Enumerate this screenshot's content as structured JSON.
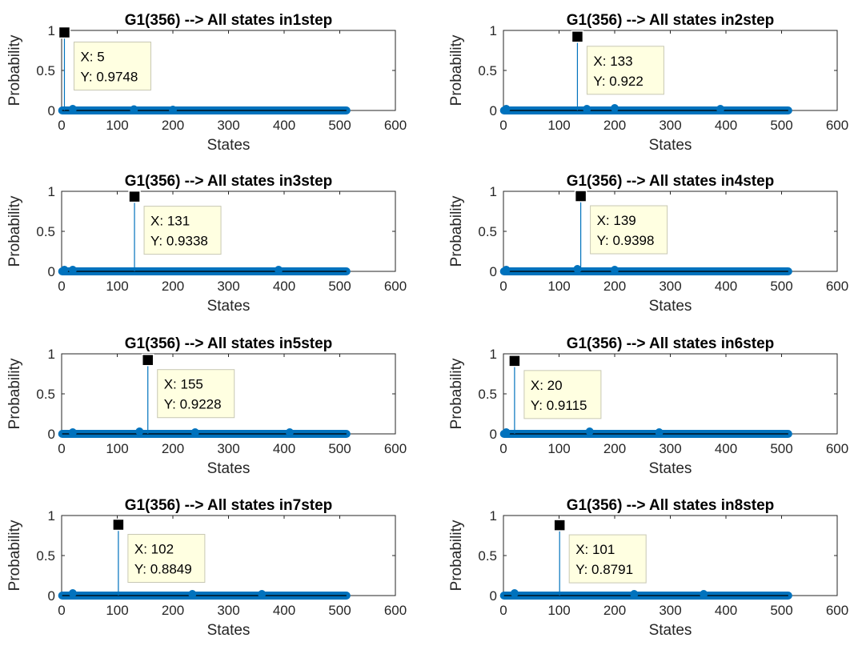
{
  "chart_data": [
    {
      "type": "stem",
      "title": "G1(356) --> All states in1step",
      "xlabel": "States",
      "ylabel": "Probability",
      "xlim": [
        0,
        600
      ],
      "ylim": [
        0,
        1
      ],
      "xticks": [
        "0",
        "100",
        "200",
        "300",
        "400",
        "500",
        "600"
      ],
      "yticks": [
        "0",
        "0.5",
        "1"
      ],
      "n_states": 512,
      "peak": {
        "x": 5,
        "y": 0.9748
      },
      "datatip": {
        "x_label": "X: 5",
        "y_label": "Y: 0.9748"
      },
      "minor_points": [
        {
          "x": 20,
          "y": 0.02
        },
        {
          "x": 130,
          "y": 0.015
        },
        {
          "x": 200,
          "y": 0.01
        }
      ]
    },
    {
      "type": "stem",
      "title": "G1(356) --> All states in2step",
      "xlabel": "States",
      "ylabel": "Probability",
      "xlim": [
        0,
        600
      ],
      "ylim": [
        0,
        1
      ],
      "xticks": [
        "0",
        "100",
        "200",
        "300",
        "400",
        "500",
        "600"
      ],
      "yticks": [
        "0",
        "0.5",
        "1"
      ],
      "n_states": 512,
      "peak": {
        "x": 133,
        "y": 0.922
      },
      "datatip": {
        "x_label": "X: 133",
        "y_label": "Y: 0.922"
      },
      "minor_points": [
        {
          "x": 5,
          "y": 0.02
        },
        {
          "x": 150,
          "y": 0.02
        },
        {
          "x": 200,
          "y": 0.03
        },
        {
          "x": 390,
          "y": 0.02
        }
      ]
    },
    {
      "type": "stem",
      "title": "G1(356) --> All states in3step",
      "xlabel": "States",
      "ylabel": "Probability",
      "xlim": [
        0,
        600
      ],
      "ylim": [
        0,
        1
      ],
      "xticks": [
        "0",
        "100",
        "200",
        "300",
        "400",
        "500",
        "600"
      ],
      "yticks": [
        "0",
        "0.5",
        "1"
      ],
      "n_states": 512,
      "peak": {
        "x": 131,
        "y": 0.9338
      },
      "datatip": {
        "x_label": "X: 131",
        "y_label": "Y: 0.9338"
      },
      "minor_points": [
        {
          "x": 5,
          "y": 0.02
        },
        {
          "x": 20,
          "y": 0.02
        },
        {
          "x": 390,
          "y": 0.02
        }
      ]
    },
    {
      "type": "stem",
      "title": "G1(356) --> All states in4step",
      "xlabel": "States",
      "ylabel": "Probability",
      "xlim": [
        0,
        600
      ],
      "ylim": [
        0,
        1
      ],
      "xticks": [
        "0",
        "100",
        "200",
        "300",
        "400",
        "500",
        "600"
      ],
      "yticks": [
        "0",
        "0.5",
        "1"
      ],
      "n_states": 512,
      "peak": {
        "x": 139,
        "y": 0.9398
      },
      "datatip": {
        "x_label": "X: 139",
        "y_label": "Y: 0.9398"
      },
      "minor_points": [
        {
          "x": 5,
          "y": 0.02
        },
        {
          "x": 133,
          "y": 0.03
        },
        {
          "x": 200,
          "y": 0.02
        }
      ]
    },
    {
      "type": "stem",
      "title": "G1(356) --> All states in5step",
      "xlabel": "States",
      "ylabel": "Probability",
      "xlim": [
        0,
        600
      ],
      "ylim": [
        0,
        1
      ],
      "xticks": [
        "0",
        "100",
        "200",
        "300",
        "400",
        "500",
        "600"
      ],
      "yticks": [
        "0",
        "0.5",
        "1"
      ],
      "n_states": 512,
      "peak": {
        "x": 155,
        "y": 0.9228
      },
      "datatip": {
        "x_label": "X: 155",
        "y_label": "Y: 0.9228"
      },
      "minor_points": [
        {
          "x": 20,
          "y": 0.02
        },
        {
          "x": 140,
          "y": 0.03
        },
        {
          "x": 240,
          "y": 0.02
        },
        {
          "x": 410,
          "y": 0.02
        }
      ]
    },
    {
      "type": "stem",
      "title": "G1(356) --> All states in6step",
      "xlabel": "States",
      "ylabel": "Probability",
      "xlim": [
        0,
        600
      ],
      "ylim": [
        0,
        1
      ],
      "xticks": [
        "0",
        "100",
        "200",
        "300",
        "400",
        "500",
        "600"
      ],
      "yticks": [
        "0",
        "0.5",
        "1"
      ],
      "n_states": 512,
      "peak": {
        "x": 20,
        "y": 0.9115
      },
      "datatip": {
        "x_label": "X: 20",
        "y_label": "Y: 0.9115"
      },
      "minor_points": [
        {
          "x": 5,
          "y": 0.02
        },
        {
          "x": 155,
          "y": 0.03
        },
        {
          "x": 280,
          "y": 0.02
        }
      ]
    },
    {
      "type": "stem",
      "title": "G1(356) --> All states in7step",
      "xlabel": "States",
      "ylabel": "Probability",
      "xlim": [
        0,
        600
      ],
      "ylim": [
        0,
        1
      ],
      "xticks": [
        "0",
        "100",
        "200",
        "300",
        "400",
        "500",
        "600"
      ],
      "yticks": [
        "0",
        "0.5",
        "1"
      ],
      "n_states": 512,
      "peak": {
        "x": 102,
        "y": 0.8849
      },
      "datatip": {
        "x_label": "X: 102",
        "y_label": "Y: 0.8849"
      },
      "minor_points": [
        {
          "x": 20,
          "y": 0.03
        },
        {
          "x": 235,
          "y": 0.02
        },
        {
          "x": 360,
          "y": 0.02
        }
      ]
    },
    {
      "type": "stem",
      "title": "G1(356) --> All states in8step",
      "xlabel": "States",
      "ylabel": "Probability",
      "xlim": [
        0,
        600
      ],
      "ylim": [
        0,
        1
      ],
      "xticks": [
        "0",
        "100",
        "200",
        "300",
        "400",
        "500",
        "600"
      ],
      "yticks": [
        "0",
        "0.5",
        "1"
      ],
      "n_states": 512,
      "peak": {
        "x": 101,
        "y": 0.8791
      },
      "datatip": {
        "x_label": "X: 101",
        "y_label": "Y: 0.8791"
      },
      "minor_points": [
        {
          "x": 20,
          "y": 0.03
        },
        {
          "x": 235,
          "y": 0.02
        },
        {
          "x": 360,
          "y": 0.02
        }
      ]
    }
  ],
  "colors": {
    "stem": "#0072BD",
    "axis": "#262626",
    "tip_bg": "#FFFFE1",
    "tip_border": "#C8C8B4",
    "marker": "#000000"
  }
}
